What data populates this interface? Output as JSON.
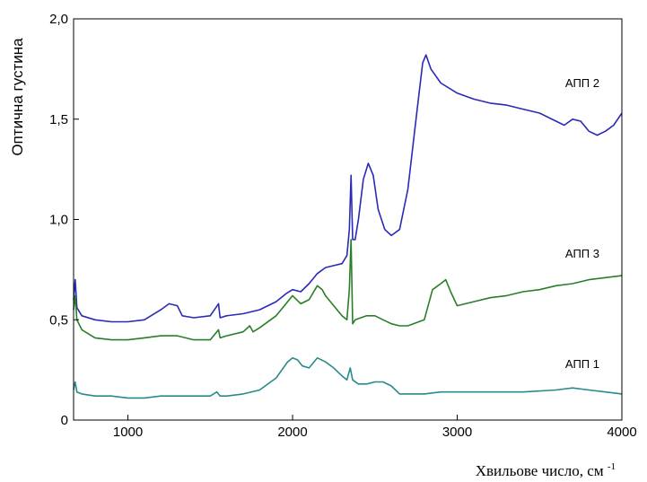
{
  "chart_data": {
    "type": "line",
    "title": "",
    "xlabel": "Хвильове число, см",
    "xlabel_sup": "-1",
    "ylabel": "Оптична густина",
    "xlim": [
      670,
      4000
    ],
    "ylim": [
      0,
      2.0
    ],
    "x_ticks": [
      1000,
      2000,
      3000,
      4000
    ],
    "x_tick_labels": [
      "1000",
      "2000",
      "3000",
      "4000"
    ],
    "y_ticks": [
      0,
      0.5,
      1.0,
      1.5,
      2.0
    ],
    "y_tick_labels": [
      "0",
      "0,5",
      "1,0",
      "1,5",
      "2,0"
    ],
    "grid": false,
    "legend": "none",
    "series": [
      {
        "name": "АПП 2",
        "color": "#2a2ab8",
        "label_at": [
          3760,
          1.66
        ],
        "points": [
          [
            670,
            0.6
          ],
          [
            680,
            0.7
          ],
          [
            690,
            0.56
          ],
          [
            720,
            0.52
          ],
          [
            800,
            0.5
          ],
          [
            900,
            0.49
          ],
          [
            1000,
            0.49
          ],
          [
            1100,
            0.5
          ],
          [
            1200,
            0.55
          ],
          [
            1250,
            0.58
          ],
          [
            1300,
            0.57
          ],
          [
            1330,
            0.52
          ],
          [
            1400,
            0.51
          ],
          [
            1500,
            0.52
          ],
          [
            1550,
            0.58
          ],
          [
            1560,
            0.51
          ],
          [
            1600,
            0.52
          ],
          [
            1700,
            0.53
          ],
          [
            1800,
            0.55
          ],
          [
            1900,
            0.59
          ],
          [
            1960,
            0.63
          ],
          [
            2000,
            0.65
          ],
          [
            2050,
            0.64
          ],
          [
            2100,
            0.68
          ],
          [
            2150,
            0.73
          ],
          [
            2200,
            0.76
          ],
          [
            2250,
            0.77
          ],
          [
            2300,
            0.78
          ],
          [
            2330,
            0.82
          ],
          [
            2345,
            0.95
          ],
          [
            2355,
            1.22
          ],
          [
            2365,
            0.9
          ],
          [
            2380,
            0.9
          ],
          [
            2400,
            1.0
          ],
          [
            2430,
            1.2
          ],
          [
            2460,
            1.28
          ],
          [
            2490,
            1.22
          ],
          [
            2520,
            1.05
          ],
          [
            2560,
            0.95
          ],
          [
            2600,
            0.92
          ],
          [
            2650,
            0.95
          ],
          [
            2700,
            1.15
          ],
          [
            2750,
            1.5
          ],
          [
            2790,
            1.78
          ],
          [
            2810,
            1.82
          ],
          [
            2840,
            1.75
          ],
          [
            2900,
            1.68
          ],
          [
            3000,
            1.63
          ],
          [
            3100,
            1.6
          ],
          [
            3200,
            1.58
          ],
          [
            3300,
            1.57
          ],
          [
            3400,
            1.55
          ],
          [
            3500,
            1.53
          ],
          [
            3600,
            1.49
          ],
          [
            3650,
            1.47
          ],
          [
            3700,
            1.5
          ],
          [
            3750,
            1.49
          ],
          [
            3800,
            1.44
          ],
          [
            3850,
            1.42
          ],
          [
            3900,
            1.44
          ],
          [
            3950,
            1.47
          ],
          [
            4000,
            1.53
          ]
        ]
      },
      {
        "name": "АПП 3",
        "color": "#2a7e2a",
        "label_at": [
          3760,
          0.81
        ],
        "points": [
          [
            670,
            0.55
          ],
          [
            680,
            0.62
          ],
          [
            690,
            0.5
          ],
          [
            720,
            0.45
          ],
          [
            800,
            0.41
          ],
          [
            900,
            0.4
          ],
          [
            1000,
            0.4
          ],
          [
            1100,
            0.41
          ],
          [
            1200,
            0.42
          ],
          [
            1300,
            0.42
          ],
          [
            1400,
            0.4
          ],
          [
            1500,
            0.4
          ],
          [
            1550,
            0.45
          ],
          [
            1560,
            0.41
          ],
          [
            1600,
            0.42
          ],
          [
            1700,
            0.44
          ],
          [
            1740,
            0.47
          ],
          [
            1760,
            0.44
          ],
          [
            1800,
            0.46
          ],
          [
            1900,
            0.52
          ],
          [
            1950,
            0.57
          ],
          [
            2000,
            0.62
          ],
          [
            2050,
            0.58
          ],
          [
            2100,
            0.6
          ],
          [
            2150,
            0.67
          ],
          [
            2180,
            0.65
          ],
          [
            2200,
            0.62
          ],
          [
            2250,
            0.57
          ],
          [
            2300,
            0.52
          ],
          [
            2330,
            0.5
          ],
          [
            2345,
            0.65
          ],
          [
            2355,
            0.9
          ],
          [
            2365,
            0.48
          ],
          [
            2380,
            0.5
          ],
          [
            2450,
            0.52
          ],
          [
            2500,
            0.52
          ],
          [
            2550,
            0.5
          ],
          [
            2600,
            0.48
          ],
          [
            2650,
            0.47
          ],
          [
            2700,
            0.47
          ],
          [
            2800,
            0.5
          ],
          [
            2850,
            0.65
          ],
          [
            2900,
            0.68
          ],
          [
            2930,
            0.7
          ],
          [
            2960,
            0.64
          ],
          [
            3000,
            0.57
          ],
          [
            3100,
            0.59
          ],
          [
            3200,
            0.61
          ],
          [
            3300,
            0.62
          ],
          [
            3400,
            0.64
          ],
          [
            3500,
            0.65
          ],
          [
            3600,
            0.67
          ],
          [
            3700,
            0.68
          ],
          [
            3800,
            0.7
          ],
          [
            3900,
            0.71
          ],
          [
            4000,
            0.72
          ]
        ]
      },
      {
        "name": "АПП 1",
        "color": "#2a8a8a",
        "label_at": [
          3760,
          0.26
        ],
        "points": [
          [
            670,
            0.15
          ],
          [
            680,
            0.19
          ],
          [
            690,
            0.14
          ],
          [
            720,
            0.13
          ],
          [
            800,
            0.12
          ],
          [
            900,
            0.12
          ],
          [
            1000,
            0.11
          ],
          [
            1100,
            0.11
          ],
          [
            1200,
            0.12
          ],
          [
            1300,
            0.12
          ],
          [
            1400,
            0.12
          ],
          [
            1500,
            0.12
          ],
          [
            1540,
            0.14
          ],
          [
            1560,
            0.12
          ],
          [
            1600,
            0.12
          ],
          [
            1700,
            0.13
          ],
          [
            1800,
            0.15
          ],
          [
            1900,
            0.21
          ],
          [
            1970,
            0.29
          ],
          [
            2000,
            0.31
          ],
          [
            2030,
            0.3
          ],
          [
            2060,
            0.27
          ],
          [
            2100,
            0.26
          ],
          [
            2150,
            0.31
          ],
          [
            2200,
            0.29
          ],
          [
            2250,
            0.26
          ],
          [
            2300,
            0.22
          ],
          [
            2330,
            0.2
          ],
          [
            2350,
            0.26
          ],
          [
            2365,
            0.2
          ],
          [
            2400,
            0.18
          ],
          [
            2450,
            0.18
          ],
          [
            2500,
            0.19
          ],
          [
            2550,
            0.19
          ],
          [
            2600,
            0.17
          ],
          [
            2650,
            0.13
          ],
          [
            2700,
            0.13
          ],
          [
            2800,
            0.13
          ],
          [
            2900,
            0.14
          ],
          [
            3000,
            0.14
          ],
          [
            3200,
            0.14
          ],
          [
            3400,
            0.14
          ],
          [
            3600,
            0.15
          ],
          [
            3700,
            0.16
          ],
          [
            3800,
            0.15
          ],
          [
            3900,
            0.14
          ],
          [
            4000,
            0.13
          ]
        ]
      }
    ]
  }
}
